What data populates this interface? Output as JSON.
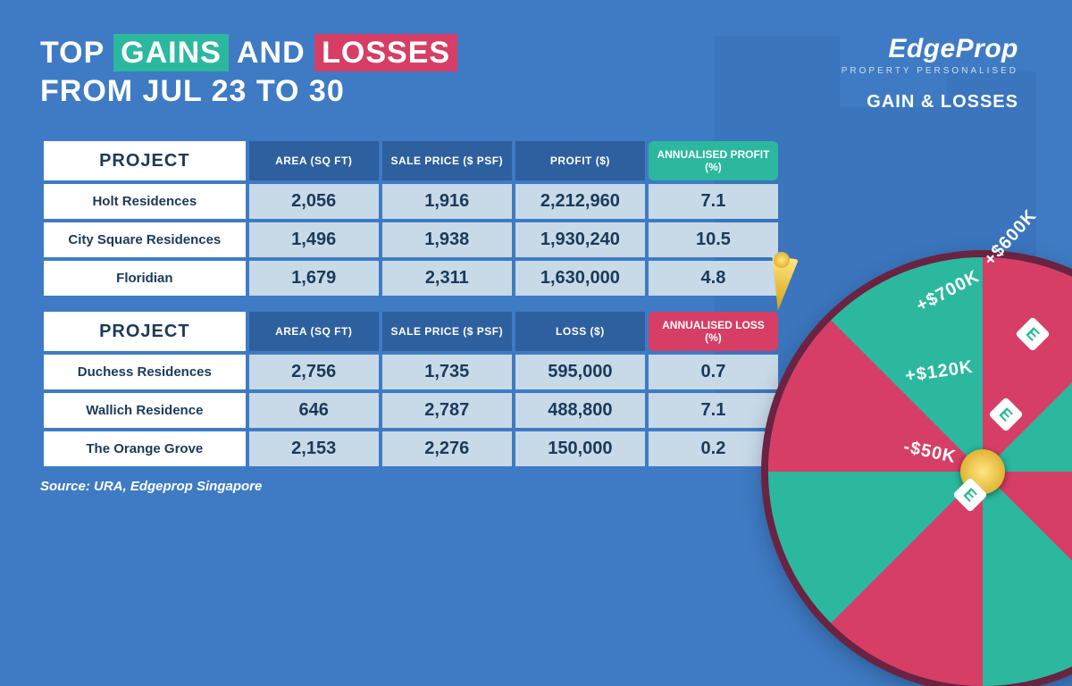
{
  "title": {
    "prefix": "TOP",
    "gain_word": "GAINS",
    "mid": "AND",
    "loss_word": "LOSSES",
    "line2": "FROM JUL 23 TO 30"
  },
  "brand": {
    "name": "EdgeProp",
    "tagline": "PROPERTY PERSONALISED",
    "section": "GAIN & LOSSES"
  },
  "colors": {
    "bg": "#3e7bc4",
    "gain": "#2bb89e",
    "loss": "#d63e66",
    "cell_bg": "#c8d9e8",
    "header_bg": "#2e5f9e",
    "white": "#ffffff",
    "text_dark": "#1a3a5a"
  },
  "gains_table": {
    "headers": {
      "project": "PROJECT",
      "area": "AREA (SQ FT)",
      "price": "SALE PRICE ($ PSF)",
      "result": "PROFIT ($)",
      "pct": "ANNUALISED PROFIT (%)"
    },
    "rows": [
      {
        "project": "Holt Residences",
        "area": "2,056",
        "price": "1,916",
        "result": "2,212,960",
        "pct": "7.1"
      },
      {
        "project": "City Square Residences",
        "area": "1,496",
        "price": "1,938",
        "result": "1,930,240",
        "pct": "10.5"
      },
      {
        "project": "Floridian",
        "area": "1,679",
        "price": "2,311",
        "result": "1,630,000",
        "pct": "4.8"
      }
    ]
  },
  "losses_table": {
    "headers": {
      "project": "PROJECT",
      "area": "AREA (SQ FT)",
      "price": "SALE PRICE ($ PSF)",
      "result": "LOSS ($)",
      "pct": "ANNUALISED LOSS (%)"
    },
    "rows": [
      {
        "project": "Duchess Residences",
        "area": "2,756",
        "price": "1,735",
        "result": "595,000",
        "pct": "0.7"
      },
      {
        "project": "Wallich Residence",
        "area": "646",
        "price": "2,787",
        "result": "488,800",
        "pct": "7.1"
      },
      {
        "project": "The Orange Grove",
        "area": "2,153",
        "price": "2,276",
        "result": "150,000",
        "pct": "0.2"
      }
    ]
  },
  "source": "Source: URA, Edgeprop Singapore",
  "wheel": {
    "labels": [
      "+$600K",
      "+$700K",
      "+$120K",
      "-$50K"
    ],
    "icon_letter": "E"
  }
}
